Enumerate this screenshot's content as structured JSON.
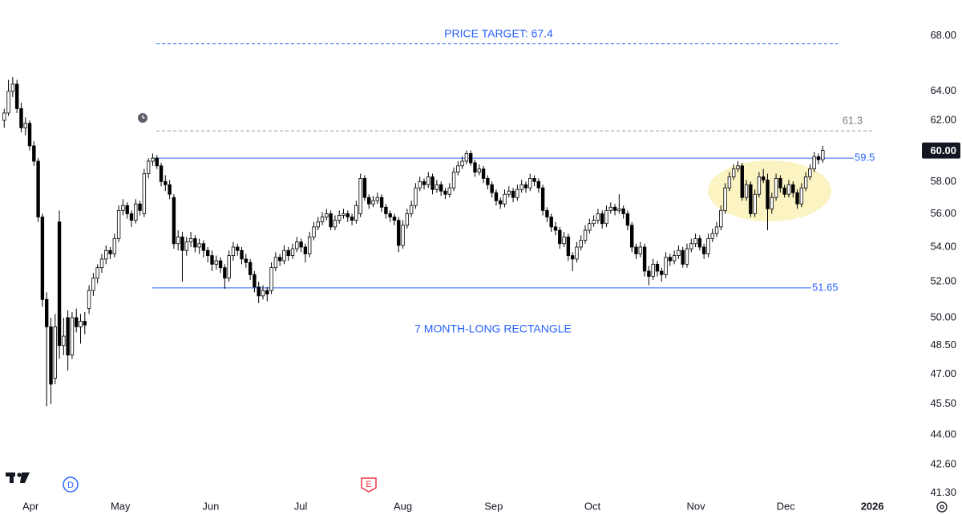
{
  "chart_data": {
    "type": "candlestick",
    "log_scale": true,
    "grid": false,
    "up_color": "#ffffff",
    "down_color": "#000000",
    "edge_color": "#000000",
    "xlim": [
      -1,
      214.5
    ],
    "xticks": [
      {
        "value": 6.2,
        "label": "Apr"
      },
      {
        "value": 27.4,
        "label": "May"
      },
      {
        "value": 48.7,
        "label": "Jun"
      },
      {
        "value": 69.9,
        "label": "Jul"
      },
      {
        "value": 94,
        "label": "Aug"
      },
      {
        "value": 115.4,
        "label": "Sep"
      },
      {
        "value": 138.7,
        "label": "Oct"
      },
      {
        "value": 163.1,
        "label": "Nov"
      },
      {
        "value": 184.3,
        "label": "Dec"
      },
      {
        "value": 204.7,
        "label": "2026"
      }
    ],
    "ylim": [
      41.1,
      70.7
    ],
    "yticks": [
      {
        "value": 68,
        "label": "68.00"
      },
      {
        "value": 64,
        "label": "64.00"
      },
      {
        "value": 62,
        "label": "62.00"
      },
      {
        "value": 58,
        "label": "58.00"
      },
      {
        "value": 56,
        "label": "56.00"
      },
      {
        "value": 54,
        "label": "54.00"
      },
      {
        "value": 52,
        "label": "52.00"
      },
      {
        "value": 50,
        "label": "50.00"
      },
      {
        "value": 48.5,
        "label": "48.50"
      },
      {
        "value": 47,
        "label": "47.00"
      },
      {
        "value": 45.5,
        "label": "45.50"
      },
      {
        "value": 44,
        "label": "44.00"
      },
      {
        "value": 42.6,
        "label": "42.60"
      },
      {
        "value": 41.3,
        "label": "41.30"
      }
    ],
    "last_price_label": "60.00",
    "last_price_color": "#131722",
    "levels": [
      {
        "value": 67.4,
        "color": "#2962ff",
        "style": "dashed",
        "label": "PRICE TARGET: 67.4"
      },
      {
        "value": 61.3,
        "color": "#9598a1",
        "style": "dashed"
      },
      {
        "value": 59.5,
        "color": "#2962ff",
        "style": "solid"
      },
      {
        "value": 51.65,
        "color": "#2962ff",
        "style": "solid"
      }
    ],
    "annotation": "7 MONTH-LONG RECTANGLE",
    "markers": {
      "dividend": "D",
      "earnings": "E"
    },
    "candles": [
      [
        62.0,
        62.8,
        61.5,
        62.5
      ],
      [
        62.5,
        64.8,
        62.3,
        64.0
      ],
      [
        64.0,
        65.0,
        63.6,
        64.5
      ],
      [
        64.5,
        64.8,
        62.5,
        62.8
      ],
      [
        62.8,
        63.2,
        61.2,
        61.5
      ],
      [
        61.5,
        62.2,
        61.0,
        61.8
      ],
      [
        61.8,
        62.0,
        60.0,
        60.3
      ],
      [
        60.3,
        60.6,
        59.0,
        59.3
      ],
      [
        59.3,
        59.5,
        55.5,
        55.8
      ],
      [
        55.8,
        56.0,
        50.6,
        51.0
      ],
      [
        51.0,
        51.4,
        45.4,
        49.5
      ],
      [
        49.5,
        50.0,
        45.5,
        46.5
      ],
      [
        46.8,
        50.2,
        46.5,
        49.5
      ],
      [
        55.5,
        56.2,
        47.8,
        48.5
      ],
      [
        48.5,
        50.0,
        48.0,
        49.0
      ],
      [
        50.0,
        50.4,
        47.2,
        48.0
      ],
      [
        48.0,
        50.3,
        47.8,
        50.0
      ],
      [
        50.0,
        50.5,
        49.2,
        49.5
      ],
      [
        49.5,
        50.2,
        48.6,
        49.8
      ],
      [
        49.8,
        50.3,
        49.1,
        49.6
      ],
      [
        50.5,
        51.8,
        50.2,
        51.5
      ],
      [
        51.5,
        52.5,
        51.2,
        52.2
      ],
      [
        52.2,
        53.0,
        51.9,
        52.8
      ],
      [
        52.8,
        53.6,
        52.5,
        53.3
      ],
      [
        53.3,
        54.1,
        53.0,
        53.8
      ],
      [
        53.8,
        54.0,
        53.3,
        53.6
      ],
      [
        53.6,
        54.8,
        53.4,
        54.5
      ],
      [
        54.5,
        56.5,
        54.3,
        56.2
      ],
      [
        56.2,
        56.9,
        55.9,
        56.5
      ],
      [
        56.5,
        56.7,
        55.7,
        56.0
      ],
      [
        56.0,
        56.2,
        55.2,
        55.6
      ],
      [
        55.6,
        56.9,
        55.4,
        56.6
      ],
      [
        56.6,
        56.8,
        55.9,
        56.2
      ],
      [
        56.0,
        58.8,
        55.8,
        58.5
      ],
      [
        58.5,
        59.5,
        58.2,
        59.3
      ],
      [
        59.3,
        59.8,
        59.0,
        59.5
      ],
      [
        59.5,
        59.7,
        58.8,
        59.0
      ],
      [
        59.0,
        59.2,
        57.7,
        58.0
      ],
      [
        58.0,
        58.4,
        57.4,
        57.8
      ],
      [
        57.8,
        58.1,
        56.9,
        57.2
      ],
      [
        57.0,
        57.2,
        53.9,
        54.2
      ],
      [
        54.2,
        55.0,
        53.8,
        54.6
      ],
      [
        54.6,
        54.9,
        52.0,
        53.8
      ],
      [
        53.8,
        54.6,
        53.5,
        54.3
      ],
      [
        54.3,
        54.9,
        54.0,
        54.5
      ],
      [
        54.5,
        54.7,
        53.7,
        54.0
      ],
      [
        54.0,
        54.5,
        53.6,
        54.2
      ],
      [
        54.2,
        54.4,
        53.4,
        53.8
      ],
      [
        53.8,
        54.0,
        53.1,
        53.5
      ],
      [
        53.5,
        53.8,
        52.6,
        53.0
      ],
      [
        53.0,
        53.5,
        52.7,
        53.2
      ],
      [
        53.2,
        53.4,
        52.5,
        52.8
      ],
      [
        52.8,
        53.0,
        51.6,
        52.2
      ],
      [
        52.2,
        53.8,
        52.0,
        53.5
      ],
      [
        53.5,
        54.3,
        53.2,
        54.0
      ],
      [
        54.0,
        54.2,
        53.5,
        53.8
      ],
      [
        53.8,
        54.0,
        53.0,
        53.3
      ],
      [
        53.3,
        53.6,
        52.8,
        53.1
      ],
      [
        53.1,
        53.3,
        52.1,
        52.4
      ],
      [
        52.4,
        52.6,
        51.4,
        51.7
      ],
      [
        51.7,
        52.0,
        50.8,
        51.2
      ],
      [
        51.2,
        51.8,
        51.0,
        51.5
      ],
      [
        51.5,
        51.7,
        50.9,
        51.3
      ],
      [
        51.5,
        53.1,
        51.3,
        52.8
      ],
      [
        52.8,
        53.7,
        52.6,
        53.4
      ],
      [
        53.4,
        53.6,
        52.9,
        53.2
      ],
      [
        53.2,
        54.1,
        53.0,
        53.8
      ],
      [
        53.8,
        54.0,
        53.2,
        53.5
      ],
      [
        53.5,
        54.2,
        53.3,
        53.9
      ],
      [
        53.9,
        54.6,
        53.7,
        54.3
      ],
      [
        54.3,
        54.5,
        53.7,
        54.0
      ],
      [
        54.0,
        54.2,
        53.1,
        53.6
      ],
      [
        53.6,
        54.9,
        53.4,
        54.6
      ],
      [
        54.6,
        55.5,
        54.4,
        55.2
      ],
      [
        55.2,
        55.8,
        55.0,
        55.5
      ],
      [
        55.5,
        56.1,
        55.3,
        55.8
      ],
      [
        55.8,
        56.3,
        55.6,
        56.0
      ],
      [
        56.0,
        56.2,
        55.0,
        55.2
      ],
      [
        55.2,
        55.9,
        55.0,
        55.6
      ],
      [
        55.6,
        56.2,
        55.4,
        55.9
      ],
      [
        55.9,
        56.3,
        55.7,
        56.0
      ],
      [
        56.0,
        56.2,
        55.5,
        55.8
      ],
      [
        55.8,
        56.0,
        55.3,
        55.6
      ],
      [
        55.6,
        56.8,
        55.4,
        56.5
      ],
      [
        56.0,
        58.5,
        55.8,
        58.2
      ],
      [
        58.2,
        58.4,
        56.8,
        57.0
      ],
      [
        57.0,
        57.2,
        56.3,
        56.6
      ],
      [
        56.6,
        57.1,
        56.4,
        56.8
      ],
      [
        56.8,
        57.3,
        56.6,
        57.0
      ],
      [
        57.0,
        57.2,
        56.1,
        56.4
      ],
      [
        56.4,
        56.6,
        55.7,
        56.0
      ],
      [
        56.0,
        56.2,
        55.5,
        55.8
      ],
      [
        55.8,
        56.0,
        55.3,
        55.6
      ],
      [
        55.6,
        55.8,
        53.7,
        54.1
      ],
      [
        54.1,
        55.6,
        53.9,
        55.3
      ],
      [
        55.3,
        56.3,
        55.1,
        56.0
      ],
      [
        56.0,
        56.8,
        55.8,
        56.5
      ],
      [
        56.5,
        57.9,
        56.3,
        57.6
      ],
      [
        57.6,
        58.3,
        57.4,
        58.0
      ],
      [
        58.0,
        58.2,
        57.5,
        57.8
      ],
      [
        57.8,
        58.6,
        57.6,
        58.3
      ],
      [
        58.3,
        58.5,
        57.2,
        57.5
      ],
      [
        57.5,
        58.1,
        57.3,
        57.8
      ],
      [
        57.8,
        58.0,
        57.1,
        57.4
      ],
      [
        57.4,
        57.6,
        56.9,
        57.2
      ],
      [
        57.2,
        57.9,
        57.0,
        57.6
      ],
      [
        57.6,
        58.9,
        57.4,
        58.6
      ],
      [
        58.6,
        59.3,
        58.4,
        59.0
      ],
      [
        59.0,
        59.6,
        58.8,
        59.3
      ],
      [
        59.3,
        60.0,
        59.1,
        59.8
      ],
      [
        59.8,
        60.0,
        59.0,
        59.2
      ],
      [
        59.2,
        59.4,
        58.3,
        58.6
      ],
      [
        58.6,
        59.1,
        58.4,
        58.8
      ],
      [
        58.8,
        59.0,
        57.9,
        58.2
      ],
      [
        58.2,
        58.4,
        57.5,
        57.8
      ],
      [
        57.8,
        58.0,
        57.0,
        57.3
      ],
      [
        57.3,
        57.5,
        56.5,
        56.8
      ],
      [
        56.8,
        57.0,
        56.3,
        56.6
      ],
      [
        56.6,
        57.5,
        56.4,
        57.2
      ],
      [
        57.2,
        57.7,
        57.0,
        57.4
      ],
      [
        57.4,
        57.6,
        56.7,
        57.0
      ],
      [
        57.0,
        57.8,
        56.8,
        57.5
      ],
      [
        57.5,
        58.1,
        57.3,
        57.8
      ],
      [
        57.8,
        58.0,
        57.3,
        57.6
      ],
      [
        57.6,
        58.5,
        57.4,
        58.2
      ],
      [
        58.2,
        58.4,
        57.7,
        58.0
      ],
      [
        58.0,
        58.2,
        57.3,
        57.6
      ],
      [
        57.6,
        57.8,
        55.9,
        56.2
      ],
      [
        56.2,
        56.4,
        55.5,
        55.8
      ],
      [
        55.8,
        56.0,
        54.9,
        55.2
      ],
      [
        55.2,
        55.5,
        54.7,
        55.0
      ],
      [
        55.0,
        55.2,
        53.9,
        54.2
      ],
      [
        54.2,
        54.9,
        54.0,
        54.6
      ],
      [
        54.6,
        54.8,
        53.2,
        53.5
      ],
      [
        53.5,
        53.7,
        52.6,
        53.3
      ],
      [
        53.3,
        54.3,
        53.1,
        54.0
      ],
      [
        54.0,
        54.7,
        53.8,
        54.4
      ],
      [
        54.4,
        55.3,
        54.2,
        55.0
      ],
      [
        55.0,
        55.7,
        54.8,
        55.4
      ],
      [
        55.4,
        55.9,
        55.2,
        55.6
      ],
      [
        55.6,
        56.3,
        55.4,
        56.0
      ],
      [
        56.0,
        56.2,
        55.1,
        55.4
      ],
      [
        55.4,
        56.5,
        55.2,
        56.2
      ],
      [
        56.2,
        56.7,
        56.0,
        56.4
      ],
      [
        56.4,
        56.6,
        55.9,
        56.2
      ],
      [
        56.2,
        57.2,
        56.0,
        56.3
      ],
      [
        56.3,
        56.5,
        55.7,
        56.0
      ],
      [
        56.0,
        56.2,
        55.0,
        55.3
      ],
      [
        55.3,
        55.5,
        53.7,
        54.0
      ],
      [
        54.0,
        54.2,
        53.3,
        53.6
      ],
      [
        53.6,
        54.3,
        53.4,
        54.0
      ],
      [
        54.0,
        54.2,
        52.3,
        52.6
      ],
      [
        52.6,
        52.9,
        51.8,
        52.3
      ],
      [
        52.3,
        53.3,
        52.1,
        53.0
      ],
      [
        53.0,
        53.2,
        52.3,
        52.6
      ],
      [
        52.6,
        52.8,
        52.0,
        52.4
      ],
      [
        52.4,
        53.7,
        52.2,
        53.4
      ],
      [
        53.4,
        53.6,
        52.9,
        53.2
      ],
      [
        53.2,
        53.8,
        53.0,
        53.5
      ],
      [
        53.5,
        54.1,
        53.3,
        53.8
      ],
      [
        53.8,
        54.0,
        52.8,
        53.0
      ],
      [
        53.0,
        54.2,
        52.8,
        53.9
      ],
      [
        53.9,
        54.5,
        53.7,
        54.2
      ],
      [
        54.2,
        54.8,
        54.0,
        54.5
      ],
      [
        54.5,
        54.7,
        53.8,
        54.0
      ],
      [
        54.0,
        54.2,
        53.3,
        53.6
      ],
      [
        53.6,
        54.8,
        53.4,
        54.5
      ],
      [
        54.5,
        55.1,
        54.3,
        54.8
      ],
      [
        54.8,
        55.5,
        54.6,
        55.2
      ],
      [
        55.2,
        56.5,
        55.0,
        56.2
      ],
      [
        56.2,
        57.9,
        56.0,
        57.6
      ],
      [
        57.6,
        58.6,
        57.4,
        58.3
      ],
      [
        58.3,
        59.1,
        58.1,
        58.8
      ],
      [
        58.8,
        59.3,
        58.6,
        59.0
      ],
      [
        59.0,
        59.2,
        56.8,
        57.0
      ],
      [
        57.0,
        58.1,
        56.8,
        57.8
      ],
      [
        57.8,
        58.0,
        55.8,
        56.0
      ],
      [
        56.0,
        57.5,
        55.8,
        57.2
      ],
      [
        57.2,
        58.6,
        57.0,
        58.3
      ],
      [
        58.3,
        58.8,
        57.9,
        58.1
      ],
      [
        58.1,
        58.5,
        55.0,
        56.3
      ],
      [
        56.3,
        57.3,
        56.0,
        57.0
      ],
      [
        57.0,
        58.5,
        56.8,
        58.2
      ],
      [
        58.2,
        58.4,
        57.3,
        57.6
      ],
      [
        57.6,
        57.8,
        57.0,
        57.2
      ],
      [
        57.2,
        58.1,
        57.0,
        57.8
      ],
      [
        57.8,
        58.0,
        57.0,
        57.3
      ],
      [
        57.3,
        57.5,
        56.3,
        56.6
      ],
      [
        56.6,
        57.9,
        56.4,
        57.6
      ],
      [
        57.6,
        58.6,
        57.4,
        58.3
      ],
      [
        58.3,
        59.1,
        58.1,
        58.8
      ],
      [
        58.8,
        59.9,
        58.6,
        59.6
      ],
      [
        59.6,
        59.8,
        59.1,
        59.4
      ],
      [
        59.4,
        60.3,
        59.2,
        60.0
      ]
    ]
  }
}
